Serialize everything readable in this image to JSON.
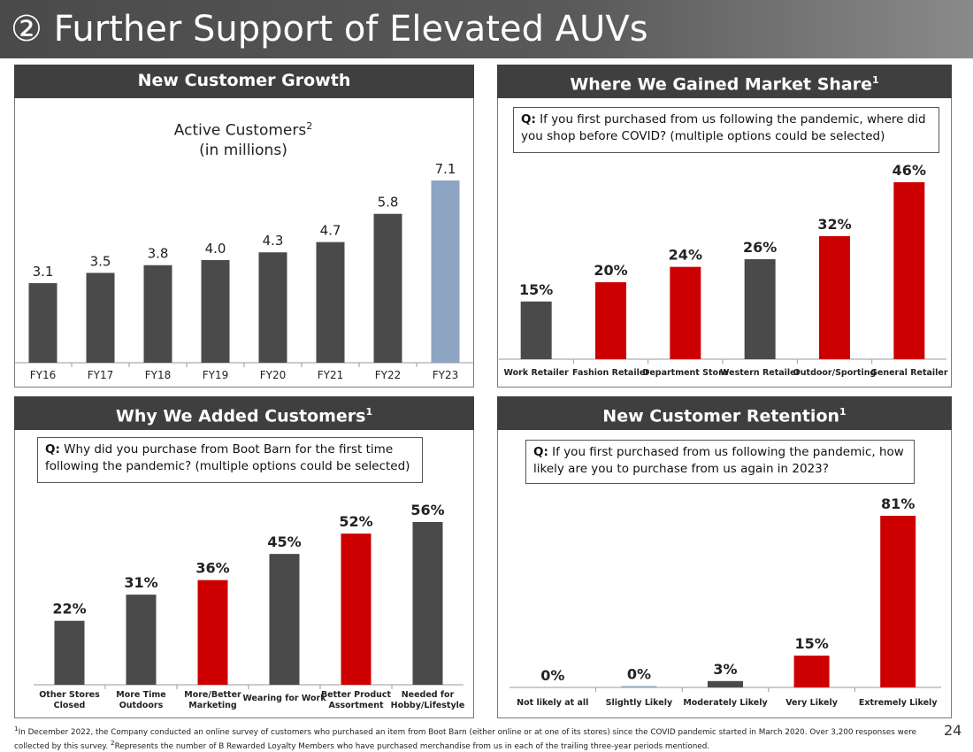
{
  "page_title": "② Further Support of Elevated AUVs",
  "page_number": "24",
  "colors": {
    "dark": "#4a4a4a",
    "red": "#cc0000",
    "blue": "#8da4c2"
  },
  "panels": {
    "customer_growth": {
      "header": "New Customer Growth",
      "chart_title_line1": "Active Customers",
      "chart_title_sup": "2",
      "chart_title_line2": "(in millions)"
    },
    "market_share": {
      "header": "Where We Gained Market Share",
      "header_sup": "1",
      "question_prefix": "Q:",
      "question": " If you first purchased from us following the pandemic, where did you shop before COVID? (multiple options could be selected)"
    },
    "why_added": {
      "header": "Why We Added Customers",
      "header_sup": "1",
      "question_prefix": "Q:",
      "question": " Why did you purchase from Boot Barn for the first time following the pandemic? (multiple options could be selected)"
    },
    "retention": {
      "header": "New Customer Retention",
      "header_sup": "1",
      "question_prefix": "Q:",
      "question": " If you first purchased from us following the pandemic, how likely are you to purchase from us again in 2023?"
    }
  },
  "chart_data": [
    {
      "id": "active_customers",
      "type": "bar",
      "title": "Active Customers (in millions)",
      "categories": [
        "FY16",
        "FY17",
        "FY18",
        "FY19",
        "FY20",
        "FY21",
        "FY22",
        "FY23"
      ],
      "values": [
        3.1,
        3.5,
        3.8,
        4.0,
        4.3,
        4.7,
        5.8,
        7.1
      ],
      "labels": [
        "3.1",
        "3.5",
        "3.8",
        "4.0",
        "4.3",
        "4.7",
        "5.8",
        "7.1"
      ],
      "colors": [
        "dark",
        "dark",
        "dark",
        "dark",
        "dark",
        "dark",
        "dark",
        "blue"
      ],
      "ylim": [
        0,
        7.1
      ]
    },
    {
      "id": "market_share",
      "type": "bar",
      "categories": [
        "Work Retailer",
        "Fashion Retailer",
        "Department Store",
        "Western Retailer",
        "Outdoor/Sporting",
        "General Retailer"
      ],
      "values": [
        15,
        20,
        24,
        26,
        32,
        46
      ],
      "labels": [
        "15%",
        "20%",
        "24%",
        "26%",
        "32%",
        "46%"
      ],
      "colors": [
        "dark",
        "red",
        "red",
        "dark",
        "red",
        "red"
      ],
      "ylim": [
        0,
        46
      ]
    },
    {
      "id": "why_added",
      "type": "bar",
      "categories": [
        "Other Stores\nClosed",
        "More Time\nOutdoors",
        "More/Better\nMarketing",
        "Wearing for Work",
        "Better Product\nAssortment",
        "Needed for\nHobby/Lifestyle"
      ],
      "values": [
        22,
        31,
        36,
        45,
        52,
        56
      ],
      "labels": [
        "22%",
        "31%",
        "36%",
        "45%",
        "52%",
        "56%"
      ],
      "colors": [
        "dark",
        "dark",
        "red",
        "dark",
        "red",
        "dark"
      ],
      "ylim": [
        0,
        56
      ]
    },
    {
      "id": "retention",
      "type": "bar",
      "categories": [
        "Not likely at all",
        "Slightly Likely",
        "Moderately Likely",
        "Very Likely",
        "Extremely Likely"
      ],
      "values": [
        0,
        0.3,
        3,
        15,
        81
      ],
      "labels": [
        "0%",
        "0%",
        "3%",
        "15%",
        "81%"
      ],
      "colors": [
        "dark",
        "blue",
        "dark",
        "red",
        "red"
      ],
      "ylim": [
        0,
        81
      ]
    }
  ],
  "footnote": {
    "sup1": "1",
    "text1": "In December 2022, the Company conducted an online survey of customers who purchased an item from Boot Barn (either online or at one of its stores) since the COVID pandemic started in March 2020. Over 3,200 responses were collected by this survey. ",
    "sup2": "2",
    "text2": "Represents the number of B Rewarded Loyalty Members who have purchased merchandise from us in each of the trailing three-year periods mentioned."
  }
}
